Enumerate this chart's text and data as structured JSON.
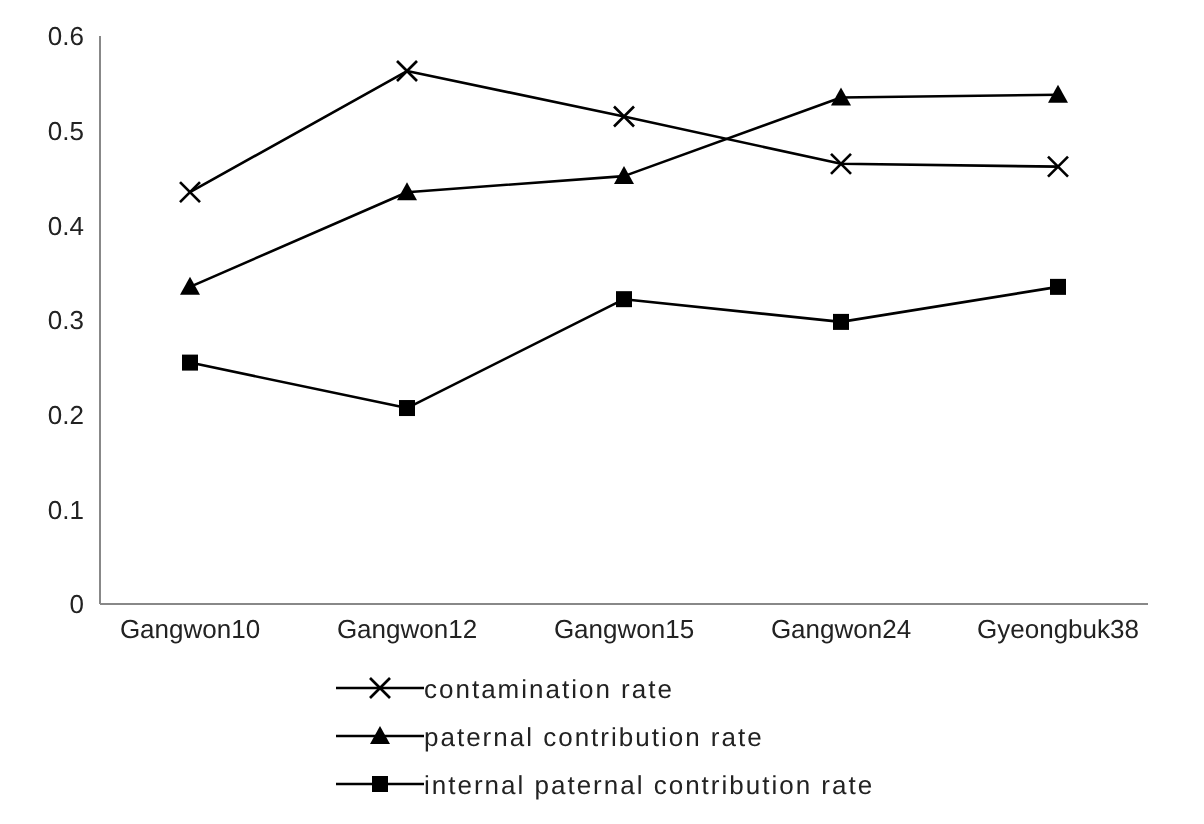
{
  "chart_data": {
    "type": "line",
    "categories": [
      "Gangwon10",
      "Gangwon12",
      "Gangwon15",
      "Gangwon24",
      "Gyeongbuk38"
    ],
    "series": [
      {
        "name": "contamination rate",
        "color": "#000000",
        "marker": "cross",
        "values": [
          0.435,
          0.563,
          0.515,
          0.465,
          0.462
        ]
      },
      {
        "name": "paternal contribution rate",
        "color": "#000000",
        "marker": "triangle",
        "values": [
          0.335,
          0.435,
          0.452,
          0.535,
          0.538
        ]
      },
      {
        "name": "internal paternal contribution rate",
        "color": "#000000",
        "marker": "square",
        "values": [
          0.255,
          0.207,
          0.322,
          0.298,
          0.335
        ]
      }
    ],
    "ylim": [
      0,
      0.6
    ],
    "yticks": [
      0,
      0.1,
      0.2,
      0.3,
      0.4,
      0.5,
      {
        "value": 0.6,
        "label": "0.6"
      }
    ],
    "legend": "bottom"
  }
}
